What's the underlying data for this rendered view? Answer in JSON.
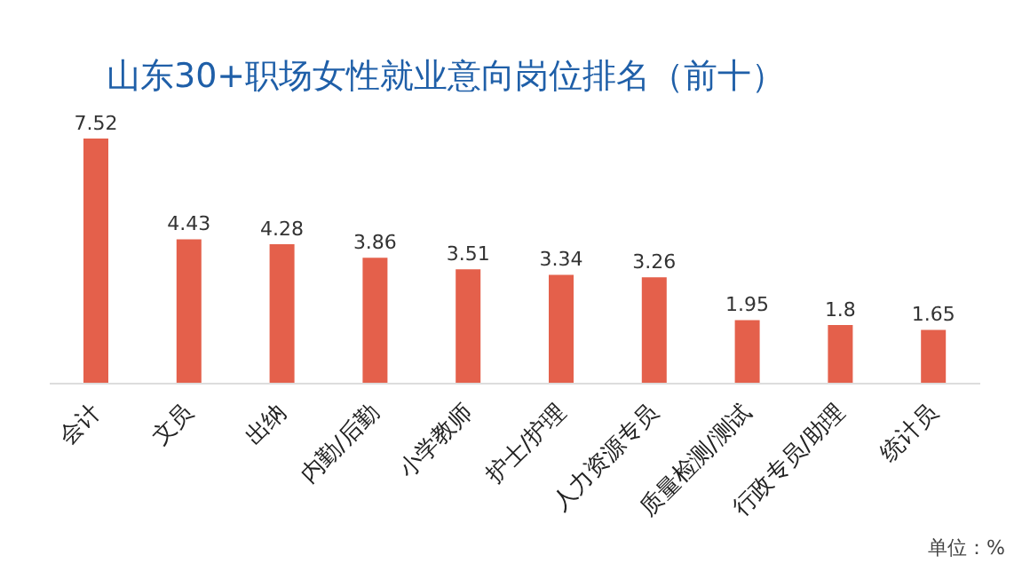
{
  "chart_data": {
    "type": "bar",
    "title": "山东30+职场女性就业意向岗位排名（前十）",
    "categories": [
      "会计",
      "文员",
      "出纳",
      "内勤/后勤",
      "小学教师",
      "护士/护理",
      "人力资源专员",
      "质量检测/测试",
      "行政专员/助理",
      "统计员"
    ],
    "values": [
      7.52,
      4.43,
      4.28,
      3.86,
      3.51,
      3.34,
      3.26,
      1.95,
      1.8,
      1.65
    ],
    "color": "#e4604b",
    "data_labels": true,
    "grid": false,
    "annotations": [
      "单位：%"
    ]
  }
}
